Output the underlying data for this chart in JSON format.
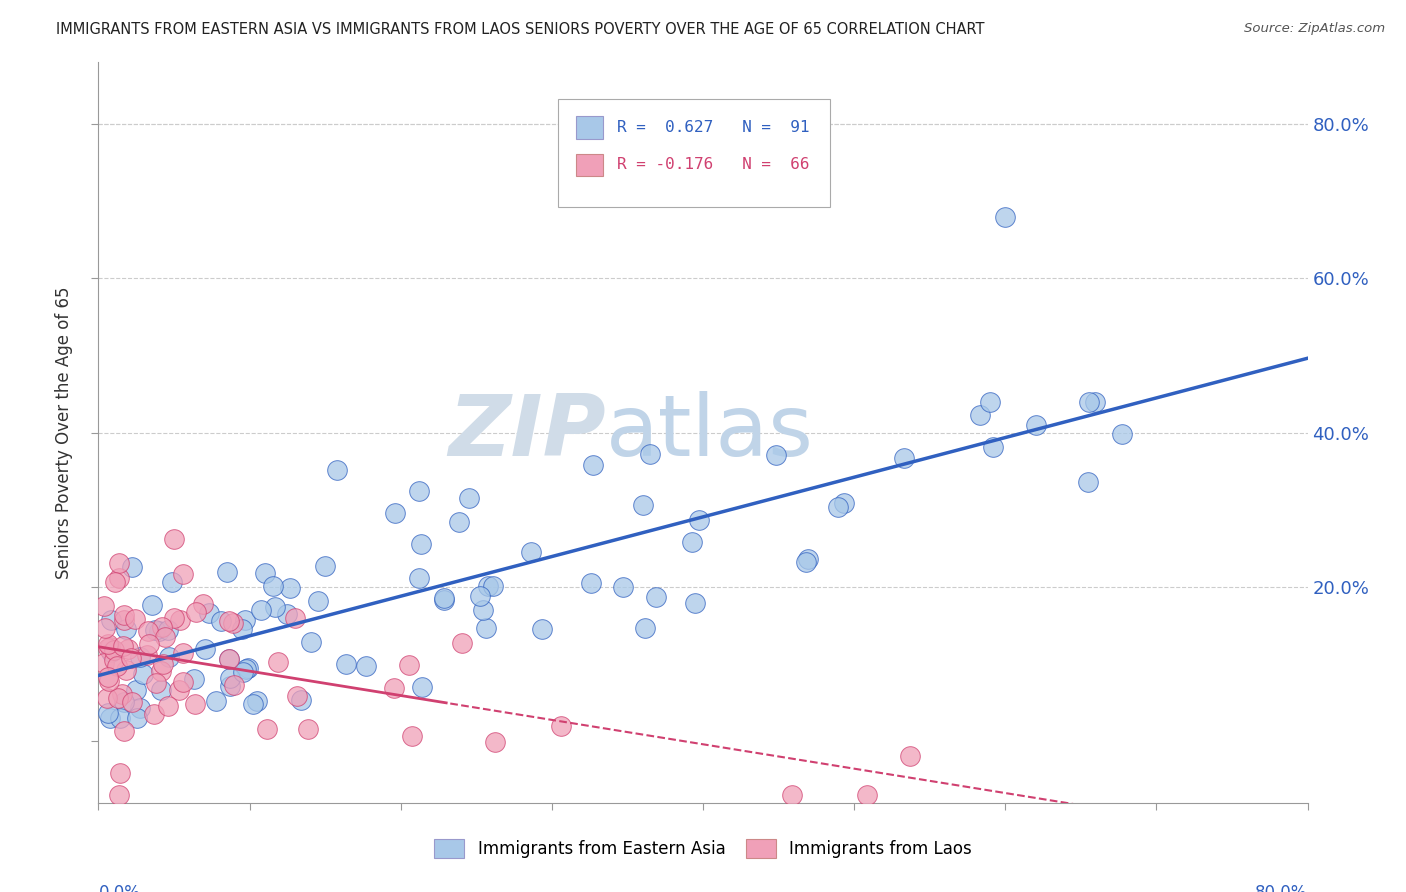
{
  "title": "IMMIGRANTS FROM EASTERN ASIA VS IMMIGRANTS FROM LAOS SENIORS POVERTY OVER THE AGE OF 65 CORRELATION CHART",
  "source": "Source: ZipAtlas.com",
  "ylabel": "Seniors Poverty Over the Age of 65",
  "color_blue": "#a8c8e8",
  "color_pink": "#f0a0b8",
  "line_blue": "#3060c0",
  "line_pink": "#d04070",
  "background_color": "#ffffff",
  "watermark_zip": "ZIP",
  "watermark_atlas": "atlas",
  "xlim": [
    0.0,
    0.8
  ],
  "ylim": [
    -0.08,
    0.88
  ],
  "ytick_vals": [
    0.0,
    0.2,
    0.4,
    0.6,
    0.8
  ],
  "ytick_labels": [
    "",
    "20.0%",
    "40.0%",
    "60.0%",
    "80.0%"
  ],
  "grid_color": "#cccccc",
  "legend_box_color": "#e8f0f8",
  "legend_text_color_blue": "#3060c0",
  "legend_text_color_pink": "#d04070",
  "bottom_label_blue": "Immigrants from Eastern Asia",
  "bottom_label_pink": "Immigrants from Laos"
}
